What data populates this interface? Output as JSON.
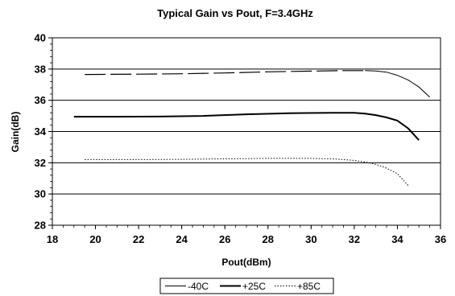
{
  "chart_data": {
    "type": "line",
    "title": "Typical Gain vs Pout, F=3.4GHz",
    "xlabel": "Pout(dBm)",
    "ylabel": "Gain(dB)",
    "xlim": [
      18,
      36
    ],
    "ylim": [
      28,
      40
    ],
    "xticks": [
      18,
      20,
      22,
      24,
      26,
      28,
      30,
      32,
      34,
      36
    ],
    "yticks": [
      28,
      30,
      32,
      34,
      36,
      38,
      40
    ],
    "grid": "horizontal",
    "legend_position": "bottom",
    "series": [
      {
        "name": "-40C",
        "style": "long-dash then thin solid",
        "color": "#000000",
        "points": [
          [
            19.5,
            37.65
          ],
          [
            22.0,
            37.67
          ],
          [
            24.0,
            37.7
          ],
          [
            26.0,
            37.75
          ],
          [
            28.0,
            37.82
          ],
          [
            30.0,
            37.87
          ],
          [
            31.5,
            37.9
          ],
          [
            32.5,
            37.9
          ],
          [
            33.0,
            37.88
          ],
          [
            33.5,
            37.8
          ],
          [
            34.0,
            37.6
          ],
          [
            34.5,
            37.3
          ],
          [
            35.0,
            36.85
          ],
          [
            35.5,
            36.2
          ]
        ]
      },
      {
        "name": "+25C",
        "style": "thick solid",
        "color": "#000000",
        "points": [
          [
            19.0,
            34.95
          ],
          [
            21.0,
            34.95
          ],
          [
            23.0,
            34.96
          ],
          [
            25.0,
            35.0
          ],
          [
            27.0,
            35.1
          ],
          [
            29.0,
            35.17
          ],
          [
            31.0,
            35.2
          ],
          [
            32.0,
            35.2
          ],
          [
            32.5,
            35.15
          ],
          [
            33.0,
            35.05
          ],
          [
            33.5,
            34.9
          ],
          [
            34.0,
            34.7
          ],
          [
            34.5,
            34.2
          ],
          [
            35.0,
            33.45
          ]
        ]
      },
      {
        "name": "+85C",
        "style": "dotted",
        "color": "#000000",
        "points": [
          [
            19.5,
            32.2
          ],
          [
            22.0,
            32.2
          ],
          [
            24.0,
            32.22
          ],
          [
            26.0,
            32.25
          ],
          [
            28.0,
            32.28
          ],
          [
            30.0,
            32.28
          ],
          [
            31.0,
            32.25
          ],
          [
            32.0,
            32.15
          ],
          [
            32.5,
            32.05
          ],
          [
            33.0,
            31.9
          ],
          [
            33.5,
            31.65
          ],
          [
            34.0,
            31.3
          ],
          [
            34.5,
            30.55
          ]
        ]
      }
    ]
  }
}
